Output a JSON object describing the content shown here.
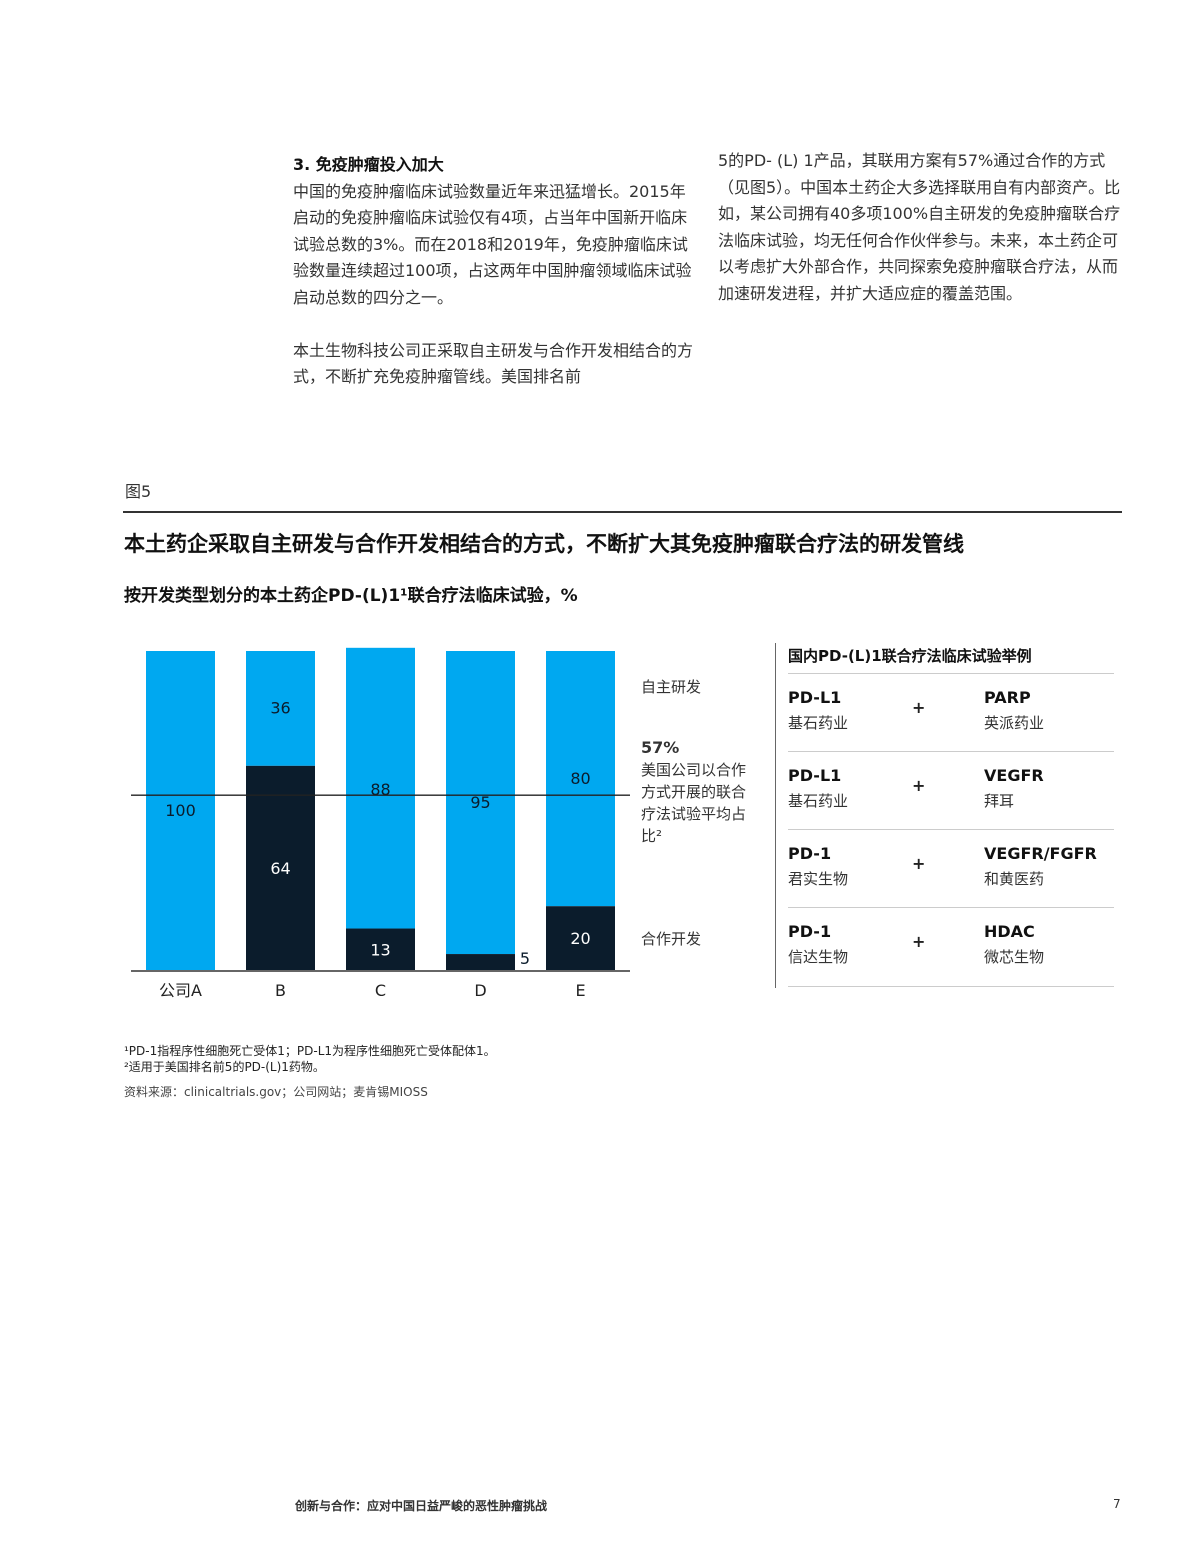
{
  "left_column": {
    "heading": "3. 免疫肿瘤投入加大",
    "paragraph1": "中国的免疫肿瘤临床试验数量近年来迅猛增长。2015年启动的免疫肿瘤临床试验仅有4项，占当年中国新开临床试验总数的3%。而在2018和2019年，免疫肿瘤临床试验数量连续超过100项，占这两年中国肿瘤领域临床试验启动总数的四分之一。",
    "paragraph2": "本土生物科技公司正采取自主研发与合作开发相结合的方式，不断扩充免疫肿瘤管线。美国排名前"
  },
  "right_column": {
    "paragraph": "5的PD- (L) 1产品，其联用方案有57%通过合作的方式（见图5）。中国本土药企大多选择联用自有内部资产。比如，某公司拥有40多项100%自主研发的免疫肿瘤联合疗法临床试验，均无任何合作伙伴参与。未来，本土药企可以考虑扩大外部合作，共同探索免疫肿瘤联合疗法，从而加速研发进程，并扩大适应症的覆盖范围。"
  },
  "figure": {
    "label": "图5",
    "title": "本土药企采取自主研发与合作开发相结合的方式，不断扩大其免疫肿瘤联合疗法的研发管线",
    "subtitle": "按开发类型划分的本土药企PD-(L)1¹联合疗法临床试验，%"
  },
  "chart_data": {
    "type": "bar",
    "stacked": true,
    "categories": [
      "公司A",
      "B",
      "C",
      "D",
      "E"
    ],
    "series": [
      {
        "name": "合作开发",
        "values": [
          0,
          64,
          13,
          5,
          20
        ],
        "color": "#0b1c2c"
      },
      {
        "name": "自主研发",
        "values": [
          100,
          36,
          88,
          95,
          80
        ],
        "color": "#00a8f0"
      }
    ],
    "ylim": [
      0,
      100
    ],
    "reference_line": {
      "value": 57,
      "label_value": "57%",
      "label_text": "美国公司以合作方式开展的联合疗法试验平均占比²"
    }
  },
  "table": {
    "title": "国内PD-(L)1联合疗法临床试验举例",
    "plus": "+",
    "rows": [
      {
        "drug1": "PD-L1",
        "company1": "基石药业",
        "drug2": "PARP",
        "company2": "英派药业"
      },
      {
        "drug1": "PD-L1",
        "company1": "基石药业",
        "drug2": "VEGFR",
        "company2": "拜耳"
      },
      {
        "drug1": "PD-1",
        "company1": "君实生物",
        "drug2": "VEGFR/FGFR",
        "company2": "和黄医药"
      },
      {
        "drug1": "PD-1",
        "company1": "信达生物",
        "drug2": "HDAC",
        "company2": "微芯生物"
      }
    ]
  },
  "footnotes": {
    "note1": "¹PD-1指程序性细胞死亡受体1；PD-L1为程序性细胞死亡受体配体1。",
    "note2": "²适用于美国排名前5的PD-(L)1药物。",
    "source": "资料来源：clinicaltrials.gov；公司网站；麦肯锡MIOSS"
  },
  "footer": {
    "title": "创新与合作：应对中国日益严峻的恶性肿瘤挑战",
    "page": "7"
  }
}
